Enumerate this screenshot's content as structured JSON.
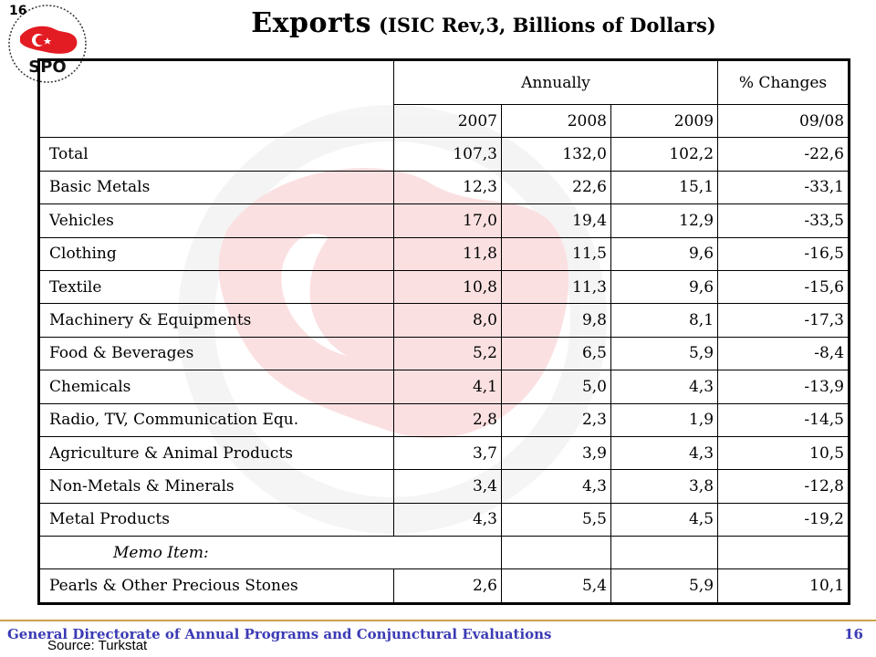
{
  "slide_number_top": "16",
  "logo": {
    "text": "SPO",
    "ring_text": "PRIME MINISTRY · STATE PLANNING ORGANIZATION"
  },
  "title": {
    "main": "Exports",
    "sub": "(ISIC Rev,3, Billions of Dollars)"
  },
  "table": {
    "group_headers": {
      "annually": "Annually",
      "changes": "% Changes"
    },
    "years": [
      "2007",
      "2008",
      "2009",
      "09/08"
    ],
    "rows": [
      {
        "label": "Total",
        "values": [
          "107,3",
          "132,0",
          "102,2",
          "-22,6"
        ]
      },
      {
        "label": "Basic Metals",
        "values": [
          "12,3",
          "22,6",
          "15,1",
          "-33,1"
        ]
      },
      {
        "label": "Vehicles",
        "values": [
          "17,0",
          "19,4",
          "12,9",
          "-33,5"
        ]
      },
      {
        "label": "Clothing",
        "values": [
          "11,8",
          "11,5",
          "9,6",
          "-16,5"
        ]
      },
      {
        "label": "Textile",
        "values": [
          "10,8",
          "11,3",
          "9,6",
          "-15,6"
        ]
      },
      {
        "label": "Machinery & Equipments",
        "values": [
          "8,0",
          "9,8",
          "8,1",
          "-17,3"
        ]
      },
      {
        "label": "Food & Beverages",
        "values": [
          "5,2",
          "6,5",
          "5,9",
          "-8,4"
        ]
      },
      {
        "label": "Chemicals",
        "values": [
          "4,1",
          "5,0",
          "4,3",
          "-13,9"
        ]
      },
      {
        "label": "Radio, TV, Communication Equ.",
        "values": [
          "2,8",
          "2,3",
          "1,9",
          "-14,5"
        ]
      },
      {
        "label": "Agriculture & Animal Products",
        "values": [
          "3,7",
          "3,9",
          "4,3",
          "10,5"
        ]
      },
      {
        "label": "Non-Metals & Minerals",
        "values": [
          "3,4",
          "4,3",
          "3,8",
          "-12,8"
        ]
      },
      {
        "label": "Metal Products",
        "values": [
          "4,3",
          "5,5",
          "4,5",
          "-19,2"
        ]
      }
    ],
    "memo_label": "Memo Item:",
    "memo_row": {
      "label": "Pearls & Other Precious Stones",
      "values": [
        "2,6",
        "5,4",
        "5,9",
        "10,1"
      ]
    }
  },
  "footer": {
    "text": "General Directorate of Annual Programs and Conjunctural Evaluations",
    "page": "16",
    "source": "Source: Turkstat"
  },
  "colors": {
    "footer_text": "#3b3bb5",
    "footer_line": "#c9a24a",
    "flag_red": "#e31b23"
  }
}
